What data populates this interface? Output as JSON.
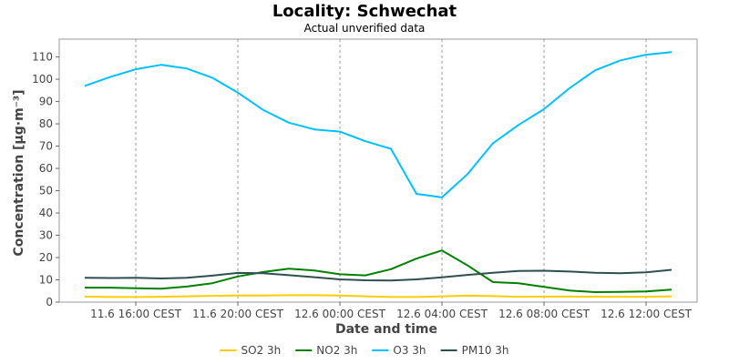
{
  "chart_data": {
    "type": "line",
    "title": "Locality: Schwechat",
    "subtitle": "Actual unverified data",
    "xlabel": "Date and time",
    "ylabel": "Concentration [µg·m⁻³]",
    "ylim": [
      0,
      118
    ],
    "yticks": [
      0,
      10,
      20,
      30,
      40,
      50,
      60,
      70,
      80,
      90,
      100,
      110
    ],
    "xlim": [
      "11.6 13:00",
      "12.6 14:00"
    ],
    "xticks": [
      {
        "at": "11.6 16:00",
        "label": "11.6 16:00 CEST"
      },
      {
        "at": "11.6 20:00",
        "label": "11.6 20:00 CEST"
      },
      {
        "at": "12.6 00:00",
        "label": "12.6 00:00 CEST"
      },
      {
        "at": "12.6 04:00",
        "label": "12.6 04:00 CEST"
      },
      {
        "at": "12.6 08:00",
        "label": "12.6 08:00 CEST"
      },
      {
        "at": "12.6 12:00",
        "label": "12.6 12:00 CEST"
      }
    ],
    "grid": true,
    "legend_position": "bottom",
    "x": [
      "11.6 14:00",
      "11.6 15:00",
      "11.6 16:00",
      "11.6 17:00",
      "11.6 18:00",
      "11.6 19:00",
      "11.6 20:00",
      "11.6 21:00",
      "11.6 22:00",
      "11.6 23:00",
      "12.6 00:00",
      "12.6 01:00",
      "12.6 02:00",
      "12.6 03:00",
      "12.6 04:00",
      "12.6 05:00",
      "12.6 06:00",
      "12.6 07:00",
      "12.6 08:00",
      "12.6 09:00",
      "12.6 10:00",
      "12.6 11:00",
      "12.6 12:00",
      "12.6 13:00"
    ],
    "series": [
      {
        "name": "SO2 3h",
        "color": "#FFCC00",
        "values": [
          2.5,
          2.3,
          2.3,
          2.4,
          2.6,
          2.8,
          3.0,
          3.0,
          3.1,
          3.1,
          3.0,
          2.6,
          2.3,
          2.3,
          2.6,
          2.9,
          2.7,
          2.4,
          2.5,
          2.5,
          2.4,
          2.4,
          2.4,
          2.6
        ]
      },
      {
        "name": "NO2 3h",
        "color": "#008000",
        "values": [
          6.5,
          6.5,
          6.2,
          6.0,
          7.0,
          8.5,
          11.5,
          13.5,
          15.0,
          14.2,
          12.5,
          12.0,
          14.8,
          19.5,
          23.2,
          16.5,
          9.0,
          8.5,
          6.8,
          5.2,
          4.5,
          4.6,
          4.8,
          5.6
        ]
      },
      {
        "name": "O3 3h",
        "color": "#00BFFF",
        "values": [
          97,
          101,
          104.5,
          106.5,
          104.8,
          100.7,
          94,
          86.2,
          80.5,
          77.5,
          76.5,
          72.2,
          68.8,
          48.6,
          47,
          57.4,
          71.3,
          79.5,
          86.6,
          96,
          104,
          108.5,
          111,
          112.2
        ]
      },
      {
        "name": "PM10 3h",
        "color": "#2F4F4F",
        "values": [
          10.9,
          10.8,
          10.9,
          10.6,
          10.9,
          11.9,
          13.1,
          13.0,
          12.1,
          11.2,
          10.2,
          9.8,
          9.7,
          10.2,
          11.1,
          12.2,
          13.2,
          14.0,
          14.1,
          13.7,
          13.2,
          13.0,
          13.4,
          14.5
        ]
      }
    ]
  }
}
